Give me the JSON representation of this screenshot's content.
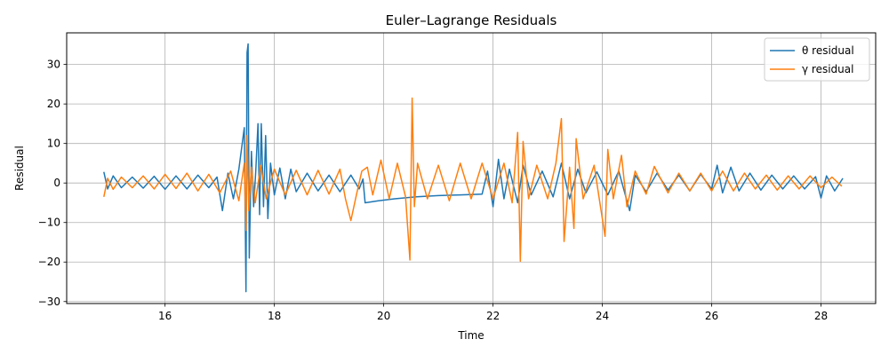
{
  "chart_data": {
    "type": "line",
    "title": "Euler–Lagrange Residuals",
    "xlabel": "Time",
    "ylabel": "Residual",
    "xlim": [
      14.2,
      29.0
    ],
    "ylim": [
      -30.5,
      38.0
    ],
    "xticks": [
      16,
      18,
      20,
      22,
      24,
      26,
      28
    ],
    "yticks": [
      -30,
      -20,
      -10,
      0,
      10,
      20,
      30
    ],
    "xtick_labels": [
      "16",
      "18",
      "20",
      "22",
      "24",
      "26",
      "28"
    ],
    "ytick_labels": [
      "−30",
      "−20",
      "−10",
      "0",
      "10",
      "20",
      "30"
    ],
    "grid": true,
    "legend_position": "top-right",
    "series": [
      {
        "name": "θ residual",
        "color": "#1f77b4",
        "points": [
          [
            14.88,
            2.8
          ],
          [
            14.95,
            -1.5
          ],
          [
            15.05,
            1.8
          ],
          [
            15.2,
            -1.2
          ],
          [
            15.4,
            1.5
          ],
          [
            15.6,
            -1.3
          ],
          [
            15.8,
            1.7
          ],
          [
            16.0,
            -1.6
          ],
          [
            16.2,
            1.8
          ],
          [
            16.4,
            -1.5
          ],
          [
            16.6,
            2.0
          ],
          [
            16.8,
            -1.2
          ],
          [
            16.95,
            1.5
          ],
          [
            17.05,
            -7.0
          ],
          [
            17.15,
            2.5
          ],
          [
            17.25,
            -4.0
          ],
          [
            17.35,
            3.5
          ],
          [
            17.45,
            14.0
          ],
          [
            17.48,
            -27.5
          ],
          [
            17.5,
            33.0
          ],
          [
            17.52,
            35.2
          ],
          [
            17.54,
            -19.0
          ],
          [
            17.58,
            8.0
          ],
          [
            17.62,
            -6.0
          ],
          [
            17.66,
            3.0
          ],
          [
            17.7,
            15.0
          ],
          [
            17.73,
            -8.0
          ],
          [
            17.76,
            15.0
          ],
          [
            17.8,
            -6.0
          ],
          [
            17.84,
            12.0
          ],
          [
            17.88,
            -9.0
          ],
          [
            17.93,
            5.0
          ],
          [
            18.0,
            -3.0
          ],
          [
            18.1,
            3.8
          ],
          [
            18.2,
            -4.0
          ],
          [
            18.3,
            3.5
          ],
          [
            18.4,
            -2.2
          ],
          [
            18.6,
            2.5
          ],
          [
            18.8,
            -2.0
          ],
          [
            19.0,
            2.0
          ],
          [
            19.2,
            -2.2
          ],
          [
            19.4,
            2.0
          ],
          [
            19.55,
            -1.5
          ],
          [
            19.62,
            1.0
          ],
          [
            19.66,
            -5.0
          ],
          [
            19.9,
            -4.5
          ],
          [
            20.2,
            -4.0
          ],
          [
            20.6,
            -3.5
          ],
          [
            21.0,
            -3.2
          ],
          [
            21.4,
            -3.0
          ],
          [
            21.8,
            -2.8
          ],
          [
            21.9,
            3.0
          ],
          [
            22.0,
            -6.0
          ],
          [
            22.1,
            6.0
          ],
          [
            22.2,
            -4.0
          ],
          [
            22.3,
            3.5
          ],
          [
            22.45,
            -5.0
          ],
          [
            22.55,
            4.5
          ],
          [
            22.7,
            -3.0
          ],
          [
            22.9,
            3.0
          ],
          [
            23.1,
            -3.5
          ],
          [
            23.25,
            5.0
          ],
          [
            23.4,
            -4.0
          ],
          [
            23.55,
            3.5
          ],
          [
            23.7,
            -2.5
          ],
          [
            23.9,
            2.8
          ],
          [
            24.1,
            -3.0
          ],
          [
            24.3,
            3.0
          ],
          [
            24.5,
            -7.0
          ],
          [
            24.6,
            2.0
          ],
          [
            24.8,
            -2.2
          ],
          [
            25.0,
            2.5
          ],
          [
            25.2,
            -1.8
          ],
          [
            25.4,
            2.0
          ],
          [
            25.6,
            -2.0
          ],
          [
            25.8,
            2.2
          ],
          [
            26.0,
            -1.5
          ],
          [
            26.1,
            4.5
          ],
          [
            26.2,
            -2.5
          ],
          [
            26.35,
            4.0
          ],
          [
            26.5,
            -2.0
          ],
          [
            26.7,
            2.5
          ],
          [
            26.9,
            -1.8
          ],
          [
            27.1,
            2.0
          ],
          [
            27.3,
            -1.5
          ],
          [
            27.5,
            1.8
          ],
          [
            27.7,
            -1.5
          ],
          [
            27.9,
            1.6
          ],
          [
            28.0,
            -3.8
          ],
          [
            28.1,
            1.8
          ],
          [
            28.25,
            -2.0
          ],
          [
            28.4,
            1.2
          ]
        ]
      },
      {
        "name": "γ residual",
        "color": "#ff7f0e",
        "points": [
          [
            14.88,
            -3.5
          ],
          [
            14.95,
            1.2
          ],
          [
            15.05,
            -1.6
          ],
          [
            15.2,
            1.5
          ],
          [
            15.4,
            -1.2
          ],
          [
            15.6,
            1.8
          ],
          [
            15.8,
            -1.5
          ],
          [
            16.0,
            2.2
          ],
          [
            16.2,
            -1.4
          ],
          [
            16.4,
            2.5
          ],
          [
            16.6,
            -2.0
          ],
          [
            16.8,
            2.2
          ],
          [
            17.0,
            -2.5
          ],
          [
            17.2,
            3.0
          ],
          [
            17.35,
            -4.5
          ],
          [
            17.45,
            5.0
          ],
          [
            17.48,
            -12.0
          ],
          [
            17.5,
            12.0
          ],
          [
            17.53,
            -7.0
          ],
          [
            17.58,
            4.0
          ],
          [
            17.65,
            -5.0
          ],
          [
            17.75,
            4.5
          ],
          [
            17.85,
            -4.0
          ],
          [
            18.0,
            3.5
          ],
          [
            18.2,
            -3.0
          ],
          [
            18.4,
            3.2
          ],
          [
            18.6,
            -3.0
          ],
          [
            18.8,
            3.2
          ],
          [
            19.0,
            -2.8
          ],
          [
            19.2,
            3.5
          ],
          [
            19.3,
            -4.0
          ],
          [
            19.4,
            -9.5
          ],
          [
            19.5,
            -3.0
          ],
          [
            19.6,
            3.0
          ],
          [
            19.7,
            4.0
          ],
          [
            19.8,
            -3.0
          ],
          [
            19.95,
            5.8
          ],
          [
            20.1,
            -4.0
          ],
          [
            20.25,
            5.0
          ],
          [
            20.4,
            -3.5
          ],
          [
            20.48,
            -19.5
          ],
          [
            20.52,
            21.5
          ],
          [
            20.56,
            -6.0
          ],
          [
            20.62,
            5.0
          ],
          [
            20.8,
            -4.0
          ],
          [
            21.0,
            4.5
          ],
          [
            21.2,
            -4.5
          ],
          [
            21.4,
            5.0
          ],
          [
            21.6,
            -4.0
          ],
          [
            21.8,
            5.0
          ],
          [
            22.0,
            -4.0
          ],
          [
            22.2,
            5.0
          ],
          [
            22.35,
            -5.0
          ],
          [
            22.45,
            12.8
          ],
          [
            22.5,
            -19.8
          ],
          [
            22.55,
            10.5
          ],
          [
            22.65,
            -4.0
          ],
          [
            22.8,
            4.5
          ],
          [
            23.0,
            -4.0
          ],
          [
            23.15,
            5.0
          ],
          [
            23.25,
            16.3
          ],
          [
            23.3,
            -14.8
          ],
          [
            23.4,
            4.0
          ],
          [
            23.48,
            -11.5
          ],
          [
            23.52,
            11.2
          ],
          [
            23.65,
            -4.0
          ],
          [
            23.85,
            4.5
          ],
          [
            24.05,
            -13.5
          ],
          [
            24.1,
            8.5
          ],
          [
            24.2,
            -4.0
          ],
          [
            24.35,
            7.0
          ],
          [
            24.45,
            -6.0
          ],
          [
            24.6,
            3.0
          ],
          [
            24.8,
            -2.8
          ],
          [
            24.95,
            4.2
          ],
          [
            25.2,
            -2.5
          ],
          [
            25.4,
            2.5
          ],
          [
            25.6,
            -2.0
          ],
          [
            25.8,
            2.5
          ],
          [
            26.0,
            -2.0
          ],
          [
            26.2,
            3.0
          ],
          [
            26.4,
            -2.0
          ],
          [
            26.6,
            2.5
          ],
          [
            26.8,
            -1.5
          ],
          [
            27.0,
            2.0
          ],
          [
            27.2,
            -1.8
          ],
          [
            27.4,
            1.8
          ],
          [
            27.6,
            -1.5
          ],
          [
            27.8,
            1.8
          ],
          [
            28.0,
            -1.2
          ],
          [
            28.2,
            1.5
          ],
          [
            28.38,
            -0.8
          ]
        ]
      }
    ]
  }
}
